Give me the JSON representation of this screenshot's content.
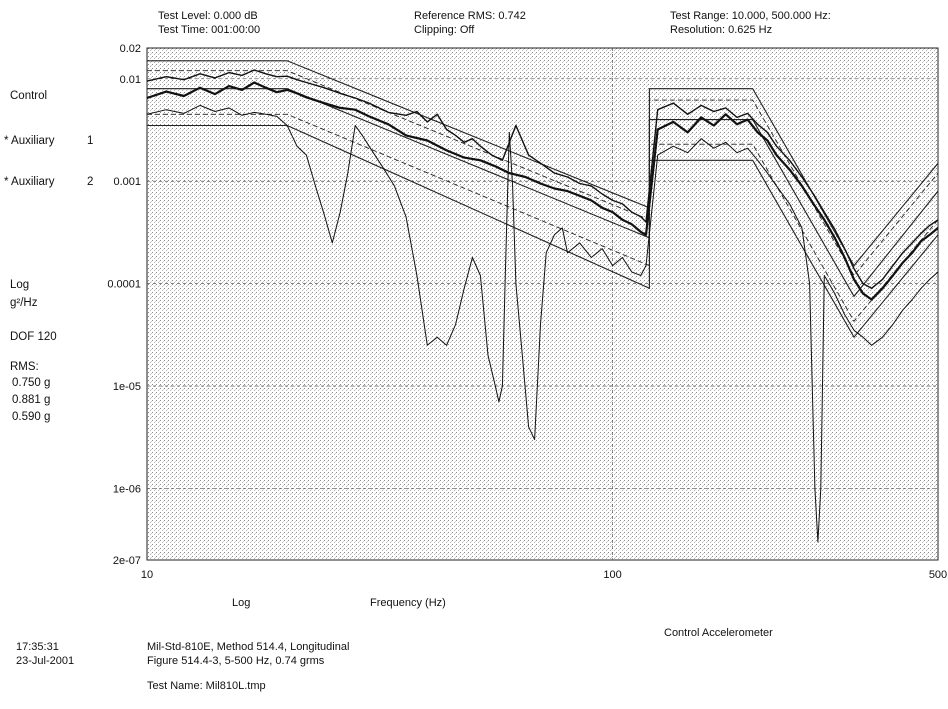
{
  "header": {
    "test_level": "Test Level: 0.000 dB",
    "test_time": "Test Time: 001:00:00",
    "reference_rms": "Reference RMS: 0.742",
    "clipping": "Clipping: Off",
    "test_range": "Test Range: 10.000, 500.000 Hz:",
    "resolution": "Resolution: 0.625 Hz"
  },
  "legend": {
    "control": "Control",
    "aux1_label": "* Auxiliary",
    "aux1_num": "1",
    "aux2_label": "* Auxiliary",
    "aux2_num": "2",
    "log": "Log",
    "units": "g²/Hz",
    "dof": "DOF 120",
    "rms_label": "RMS:",
    "rms_values": [
      "0.750 g",
      "0.881 g",
      "0.590 g"
    ]
  },
  "footer": {
    "time": "17:35:31",
    "date": "23-Jul-2001",
    "line1": "Mil-Std-810E, Method 514.4, Longitudinal",
    "line2": "Figure 514.4-3, 5-500 Hz, 0.74 grms",
    "test_name": "Test Name: Mil810L.tmp",
    "channel": "Control Accelerometer"
  },
  "chart_data": {
    "type": "line",
    "x_scale": "log",
    "y_scale": "log",
    "xlim": [
      10,
      500
    ],
    "ylim": [
      2e-07,
      0.02
    ],
    "xlabel": "Frequency (Hz)",
    "xscale_label": "Log",
    "x_ticks": [
      {
        "value": 10,
        "label": "10"
      },
      {
        "value": 100,
        "label": "100"
      },
      {
        "value": 500,
        "label": "500"
      }
    ],
    "y_ticks": [
      {
        "value": 0.02,
        "label": "0.02"
      },
      {
        "value": 0.01,
        "label": "0.01"
      },
      {
        "value": 0.001,
        "label": "0.001"
      },
      {
        "value": 0.0001,
        "label": "0.0001"
      },
      {
        "value": 1e-05,
        "label": "1e-05"
      },
      {
        "value": 1e-06,
        "label": "1e-06"
      },
      {
        "value": 2e-07,
        "label": "2e-07"
      }
    ],
    "grid": true,
    "profile_lines": [
      {
        "role": "abort-upper",
        "style": "solid",
        "x": [
          10,
          20,
          120,
          120,
          200,
          330,
          500
        ],
        "y": [
          0.015,
          0.015,
          0.00055,
          0.008,
          0.008,
          0.00015,
          0.0015
        ]
      },
      {
        "role": "alarm-upper",
        "style": "dashed",
        "x": [
          10,
          20,
          120,
          120,
          200,
          330,
          500
        ],
        "y": [
          0.012,
          0.012,
          0.00042,
          0.0062,
          0.0062,
          0.00012,
          0.0012
        ]
      },
      {
        "role": "reference",
        "style": "solid",
        "x": [
          10,
          20,
          120,
          120,
          200,
          330,
          500
        ],
        "y": [
          0.008,
          0.008,
          0.00028,
          0.004,
          0.004,
          7.5e-05,
          0.0008
        ]
      },
      {
        "role": "alarm-lower",
        "style": "dashed",
        "x": [
          10,
          20,
          120,
          120,
          200,
          330,
          500
        ],
        "y": [
          0.0045,
          0.0045,
          0.00015,
          0.0023,
          0.0023,
          4.3e-05,
          0.00042
        ]
      },
      {
        "role": "abort-lower",
        "style": "solid",
        "x": [
          10,
          20,
          120,
          120,
          200,
          330,
          500
        ],
        "y": [
          0.0035,
          0.0035,
          9e-05,
          0.0016,
          0.0016,
          3e-05,
          0.0003
        ]
      }
    ],
    "series": [
      {
        "role": "control",
        "x": [
          10,
          11,
          12,
          13,
          14,
          15,
          16,
          17,
          18,
          19,
          20,
          21,
          22,
          24,
          26,
          28,
          30,
          33,
          36,
          40,
          44,
          48,
          52,
          56,
          60,
          65,
          70,
          75,
          80,
          85,
          90,
          95,
          100,
          105,
          110,
          115,
          118,
          125,
          135,
          145,
          155,
          165,
          175,
          185,
          195,
          205,
          215,
          225,
          240,
          255,
          270,
          285,
          300,
          315,
          330,
          345,
          360,
          380,
          400,
          420,
          440,
          460,
          480,
          500
        ],
        "y": [
          0.0065,
          0.0075,
          0.0068,
          0.0082,
          0.0071,
          0.0085,
          0.0078,
          0.0092,
          0.0082,
          0.0074,
          0.0078,
          0.0072,
          0.0066,
          0.0058,
          0.0052,
          0.005,
          0.0043,
          0.0036,
          0.0028,
          0.0025,
          0.002,
          0.0017,
          0.0016,
          0.0014,
          0.0012,
          0.0011,
          0.00095,
          0.00085,
          0.0008,
          0.00072,
          0.00065,
          0.00055,
          0.0005,
          0.00042,
          0.00038,
          0.00032,
          0.0003,
          0.0032,
          0.0038,
          0.003,
          0.0042,
          0.0035,
          0.0045,
          0.0036,
          0.004,
          0.003,
          0.0025,
          0.0018,
          0.0013,
          0.0009,
          0.0006,
          0.00042,
          0.00028,
          0.00018,
          0.00011,
          8e-05,
          7e-05,
          9e-05,
          0.00012,
          0.00016,
          0.0002,
          0.00026,
          0.0003,
          0.00035
        ]
      },
      {
        "role": "auxiliary-1",
        "x": [
          10,
          11,
          12,
          13,
          14,
          15,
          16,
          17,
          18,
          19,
          20,
          21,
          22,
          24,
          26,
          28,
          30,
          33,
          36,
          38,
          40,
          42,
          44,
          46,
          48,
          50,
          52,
          55,
          58,
          62,
          66,
          70,
          75,
          80,
          85,
          90,
          95,
          100,
          105,
          110,
          115,
          118,
          125,
          135,
          145,
          155,
          165,
          175,
          185,
          195,
          205,
          215,
          225,
          240,
          255,
          270,
          285,
          300,
          315,
          330,
          345,
          360,
          380,
          400,
          420,
          440,
          460,
          480,
          500
        ],
        "y": [
          0.0095,
          0.0105,
          0.0098,
          0.0112,
          0.0102,
          0.0115,
          0.0108,
          0.0122,
          0.0112,
          0.0105,
          0.0106,
          0.0098,
          0.0092,
          0.0082,
          0.0072,
          0.0065,
          0.0058,
          0.0047,
          0.0044,
          0.0048,
          0.0038,
          0.0045,
          0.0032,
          0.0028,
          0.0024,
          0.0026,
          0.0022,
          0.0018,
          0.0016,
          0.0035,
          0.0018,
          0.0015,
          0.0012,
          0.0011,
          0.00095,
          0.0009,
          0.00075,
          0.00065,
          0.0006,
          0.0005,
          0.00045,
          0.0004,
          0.005,
          0.0058,
          0.0045,
          0.0055,
          0.0048,
          0.0052,
          0.0042,
          0.0046,
          0.0036,
          0.003,
          0.0022,
          0.0016,
          0.0011,
          0.00075,
          0.0005,
          0.00034,
          0.00022,
          0.00014,
          0.0001,
          9e-05,
          0.00011,
          0.00015,
          0.0002,
          0.00025,
          0.00031,
          0.00037,
          0.00042
        ]
      },
      {
        "role": "auxiliary-2",
        "x": [
          10,
          11,
          12,
          13,
          14,
          15,
          16,
          17,
          18,
          19,
          20,
          21,
          22,
          23,
          24,
          25,
          26,
          27,
          28,
          29,
          30,
          32,
          34,
          36,
          38,
          40,
          42,
          44,
          46,
          48,
          50,
          52,
          54,
          56,
          57,
          58,
          59,
          60,
          61,
          62,
          64,
          66,
          68,
          70,
          72,
          75,
          78,
          80,
          85,
          90,
          95,
          100,
          105,
          110,
          115,
          118,
          125,
          135,
          145,
          155,
          165,
          175,
          185,
          195,
          205,
          215,
          225,
          240,
          255,
          265,
          272,
          276,
          280,
          285,
          300,
          315,
          330,
          345,
          360,
          380,
          400,
          420,
          440,
          460,
          480,
          500
        ],
        "y": [
          0.0045,
          0.005,
          0.0046,
          0.0055,
          0.0048,
          0.0052,
          0.0044,
          0.0047,
          0.0045,
          0.0043,
          0.0035,
          0.0022,
          0.0018,
          0.0009,
          0.00048,
          0.00025,
          0.0005,
          0.0012,
          0.0035,
          0.0028,
          0.0022,
          0.0014,
          0.0009,
          0.00045,
          0.00012,
          2.5e-05,
          3e-05,
          2.5e-05,
          4e-05,
          9e-05,
          0.00018,
          0.00012,
          2e-05,
          1e-05,
          7e-06,
          1e-05,
          0.0002,
          0.003,
          0.0009,
          0.0001,
          2e-05,
          4e-06,
          3e-06,
          4e-05,
          0.0002,
          0.0003,
          0.00035,
          0.0002,
          0.00025,
          0.00018,
          0.00022,
          0.00015,
          0.00018,
          0.00013,
          0.00012,
          0.00015,
          0.0018,
          0.0022,
          0.0019,
          0.0026,
          0.0021,
          0.0024,
          0.0019,
          0.0021,
          0.0016,
          0.0012,
          0.0009,
          0.0006,
          0.00035,
          0.0001,
          1e-06,
          3e-07,
          1e-06,
          0.00012,
          8e-05,
          5e-05,
          3.5e-05,
          3e-05,
          2.5e-05,
          3e-05,
          4e-05,
          5.5e-05,
          7e-05,
          9e-05,
          0.00011,
          0.00013
        ]
      }
    ]
  }
}
